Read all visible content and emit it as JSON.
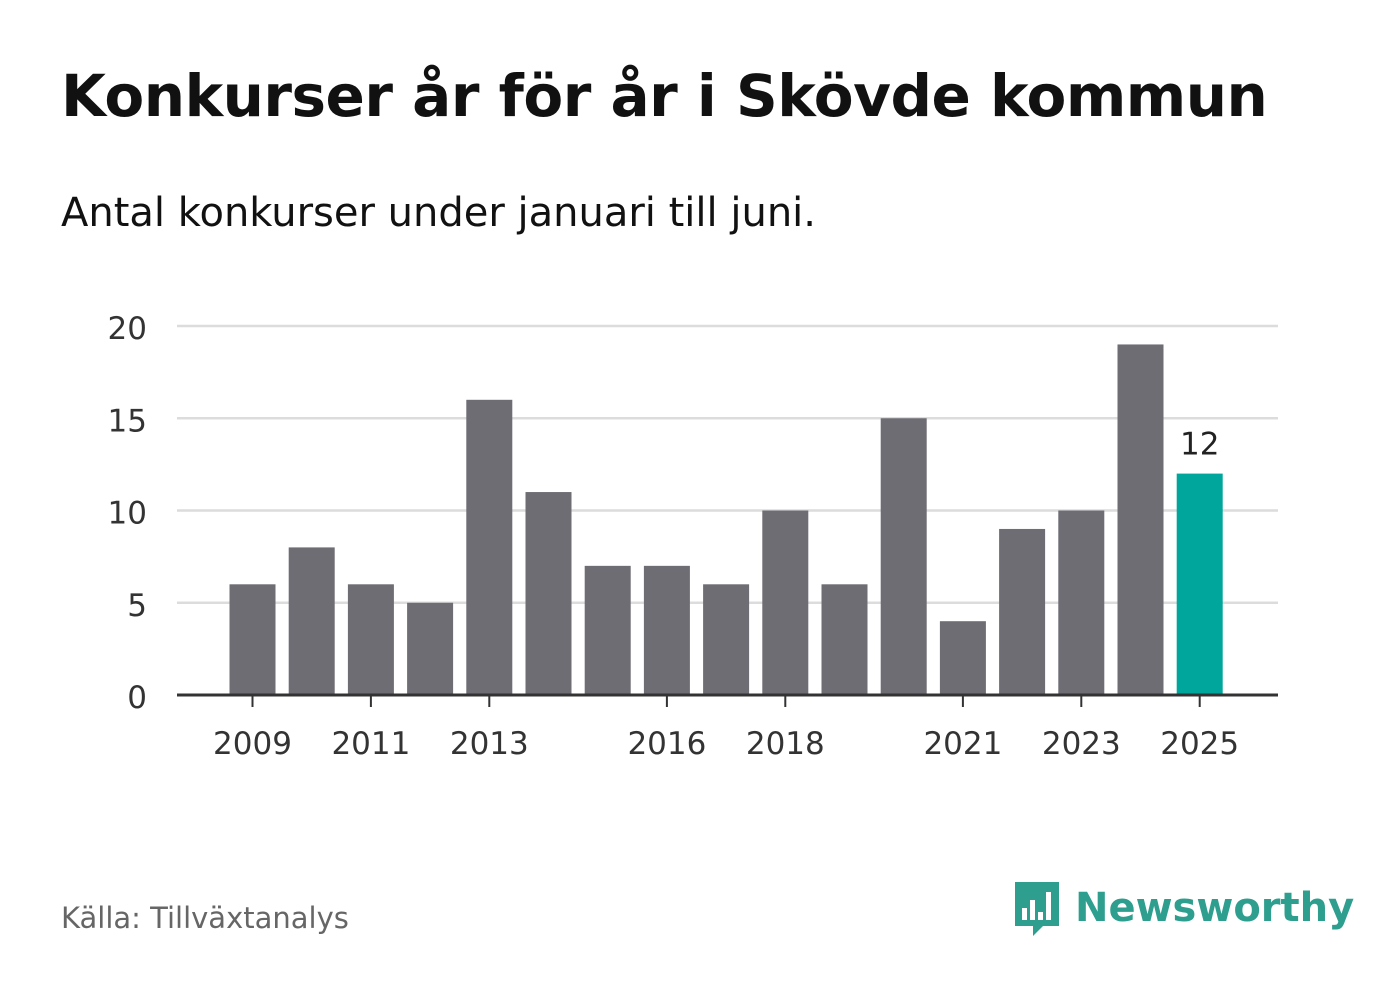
{
  "title": "Konkurser år för år i Skövde kommun",
  "subtitle": "Antal konkurser under januari till juni.",
  "source": "Källa: Tillväxtanalys",
  "brand": {
    "name": "Newsworthy",
    "icon": "bar-chart-speech-bubble-icon"
  },
  "colors": {
    "bar": "#6e6d73",
    "highlight": "#00a59b",
    "grid": "#dcdcdc",
    "axis": "#333333",
    "brand": "#2e9e8e"
  },
  "chart_data": {
    "type": "bar",
    "title": "Konkurser år för år i Skövde kommun",
    "subtitle": "Antal konkurser under januari till juni.",
    "categories": [
      2009,
      2010,
      2011,
      2012,
      2013,
      2014,
      2015,
      2016,
      2017,
      2018,
      2019,
      2020,
      2021,
      2022,
      2023,
      2024,
      2025
    ],
    "values": [
      6,
      8,
      6,
      5,
      16,
      11,
      7,
      7,
      6,
      10,
      6,
      15,
      4,
      9,
      10,
      19,
      12
    ],
    "x_tick_labels": [
      "2009",
      "2011",
      "2013",
      "2016",
      "2018",
      "2021",
      "2023",
      "2025"
    ],
    "y_ticks": [
      0,
      5,
      10,
      15,
      20
    ],
    "ylim": [
      0,
      20
    ],
    "highlight": {
      "category": 2025,
      "label": "12"
    },
    "grid": true,
    "legend": "none"
  }
}
